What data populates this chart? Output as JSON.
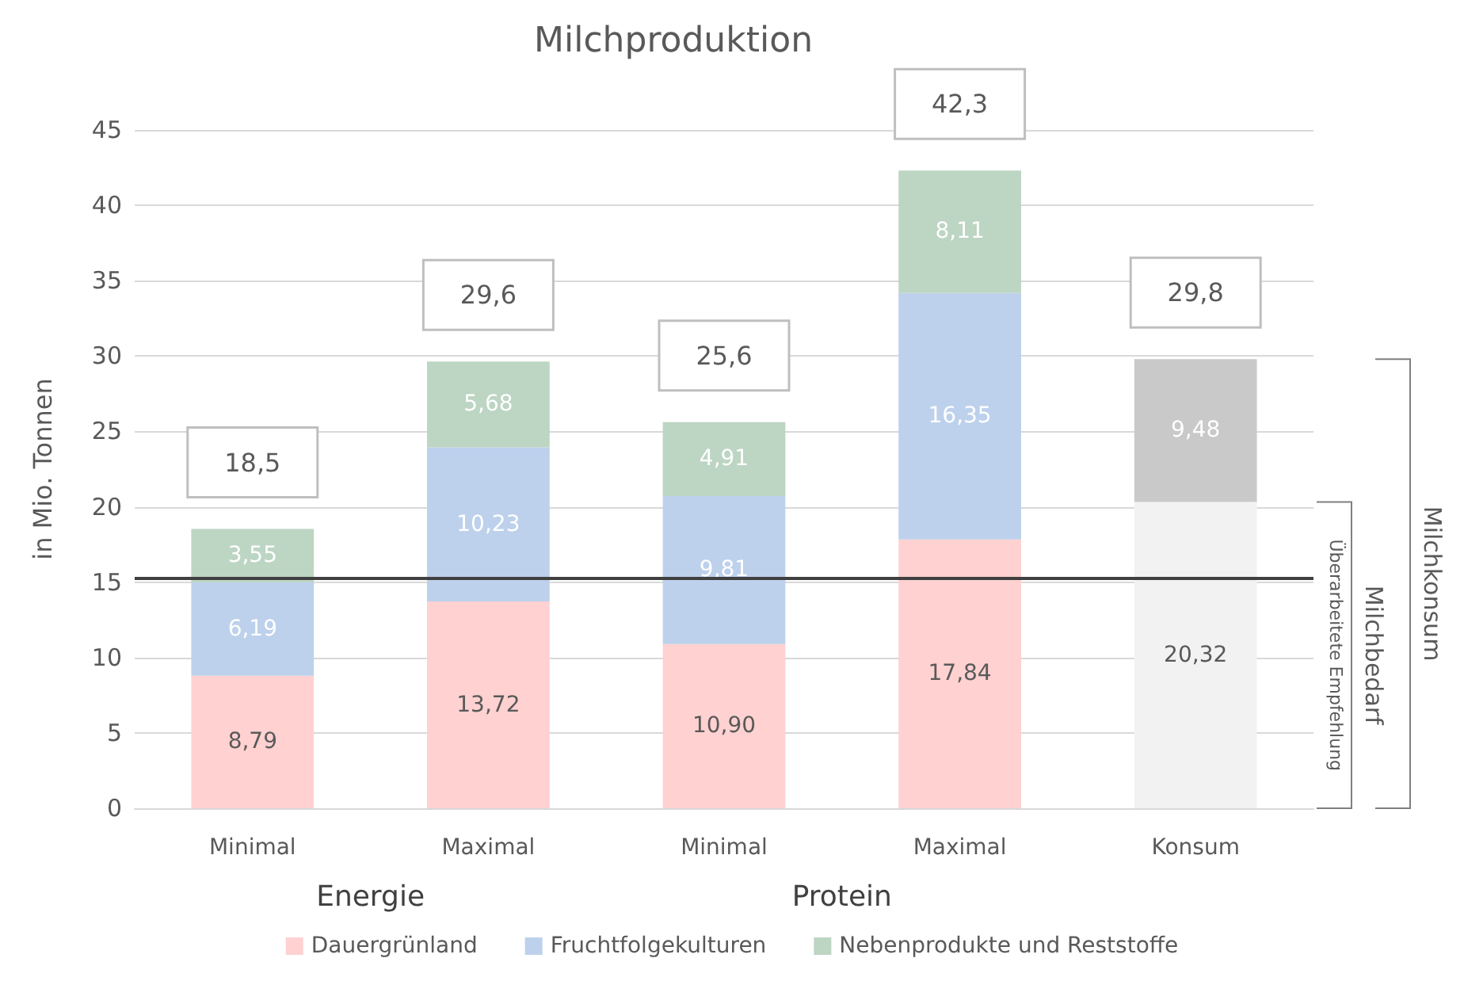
{
  "chart_data": {
    "type": "bar",
    "title": "Milchproduktion",
    "ylabel": "in Mio. Tonnen",
    "stacked": true,
    "categories": [
      "Minimal",
      "Maximal",
      "Minimal",
      "Maximal",
      "Konsum"
    ],
    "series": [
      {
        "name": "Dauergrünland",
        "color": "#ffd1d1",
        "values": [
          8.79,
          13.72,
          10.9,
          17.84,
          null
        ],
        "value_labels": [
          "8,79",
          "13,72",
          "10,90",
          "17,84",
          null
        ]
      },
      {
        "name": "Fruchtfolgekulturen",
        "color": "#bdd1ec",
        "values": [
          6.19,
          10.23,
          9.81,
          16.35,
          null
        ],
        "value_labels": [
          "6,19",
          "10,23",
          "9,81",
          "16,35",
          null
        ]
      },
      {
        "name": "Nebenprodukte und Reststoffe",
        "color": "#bdd5c3",
        "values": [
          3.55,
          5.68,
          4.91,
          8.11,
          null
        ],
        "value_labels": [
          "3,55",
          "5,68",
          "4,91",
          "8,11",
          null
        ]
      },
      {
        "color": "#f2f2f2",
        "values": [
          null,
          null,
          null,
          null,
          20.32
        ],
        "value_labels": [
          null,
          null,
          null,
          null,
          "20,32"
        ]
      },
      {
        "color": "#c9c9c9",
        "values": [
          null,
          null,
          null,
          null,
          9.48
        ],
        "value_labels": [
          null,
          null,
          null,
          null,
          "9,48"
        ]
      }
    ],
    "totals": [
      "18,5",
      "29,6",
      "25,6",
      "42,3",
      "29,8"
    ],
    "ylim": [
      0,
      45
    ],
    "yticks": [
      0,
      5,
      10,
      15,
      20,
      25,
      30,
      35,
      40,
      45
    ],
    "grid": "y",
    "legend": "bottom",
    "ref_lines": [
      {
        "axis": "y",
        "value": 15.3,
        "color": "#404040"
      }
    ],
    "annotations": [
      "Energie",
      "Protein",
      "Milchbedarf",
      "Milchkonsum",
      "Überarbeitete Empfehlung"
    ]
  }
}
